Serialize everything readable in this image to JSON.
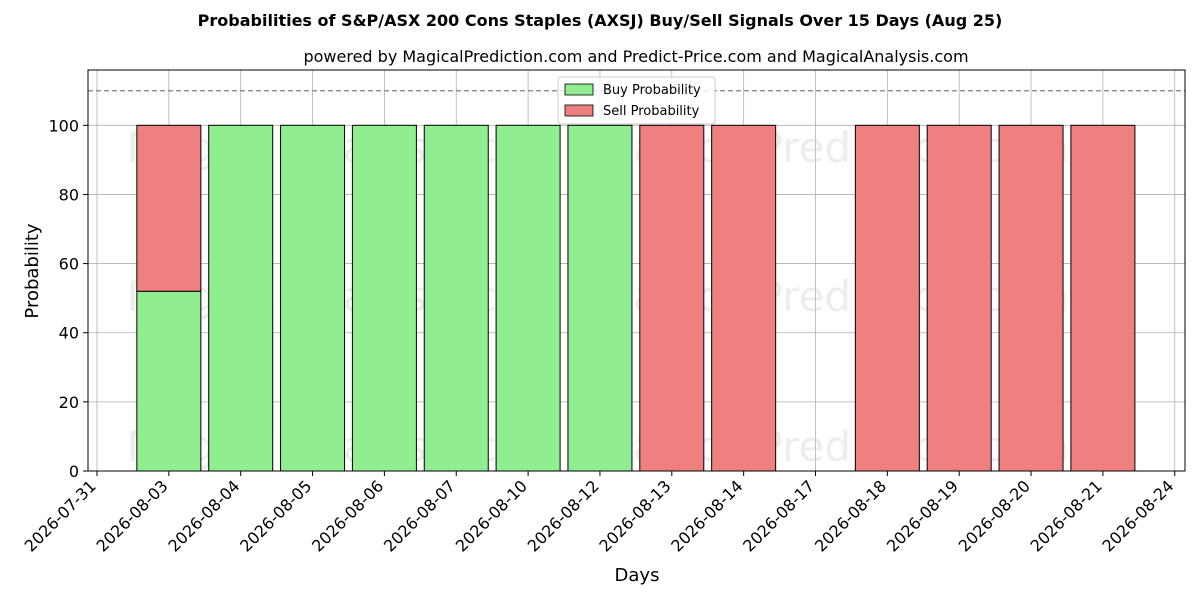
{
  "chart_data": {
    "type": "bar",
    "stacked": true,
    "title": "Probabilities of S&P/ASX 200 Cons Staples (AXSJ) Buy/Sell Signals Over 15 Days (Aug 25)",
    "subtitle": "powered by MagicalPrediction.com and Predict-Price.com and MagicalAnalysis.com",
    "xlabel": "Days",
    "ylabel": "Probability",
    "ylim": [
      0,
      116
    ],
    "yticks": [
      0,
      20,
      40,
      60,
      80,
      100
    ],
    "reference_line": 110,
    "grid": true,
    "legend_position": "top-center",
    "x_ticks": [
      "2026-07-31",
      "2026-08-03",
      "2026-08-04",
      "2026-08-05",
      "2026-08-06",
      "2026-08-07",
      "2026-08-10",
      "2026-08-12",
      "2026-08-13",
      "2026-08-14",
      "2026-08-17",
      "2026-08-18",
      "2026-08-19",
      "2026-08-20",
      "2026-08-21",
      "2026-08-24"
    ],
    "categories": [
      "2026-08-03",
      "2026-08-04",
      "2026-08-05",
      "2026-08-06",
      "2026-08-07",
      "2026-08-10",
      "2026-08-12",
      "2026-08-13",
      "2026-08-14",
      "2026-08-17",
      "2026-08-18",
      "2026-08-19",
      "2026-08-20",
      "2026-08-21"
    ],
    "series": [
      {
        "name": "Buy Probability",
        "color": "#90ee90",
        "values": [
          52,
          100,
          100,
          100,
          100,
          100,
          100,
          0,
          0,
          0,
          0,
          0,
          0,
          0
        ]
      },
      {
        "name": "Sell Probability",
        "color": "#f08080",
        "values": [
          48,
          0,
          0,
          0,
          0,
          0,
          0,
          100,
          100,
          0,
          100,
          100,
          100,
          100
        ]
      }
    ],
    "watermarks": [
      "MagicalAnalysis.com",
      "MagicalPrediction.com"
    ]
  }
}
